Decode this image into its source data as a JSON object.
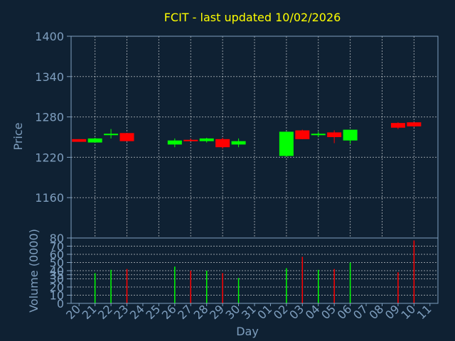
{
  "chart_data": [
    {
      "type": "candlestick",
      "title": "FCIT - last updated 10/02/2026",
      "ylabel": "Price",
      "ylim": [
        1100,
        1400
      ],
      "yticks": [
        1160,
        1220,
        1280,
        1340,
        1400
      ],
      "grid": true,
      "colors": {
        "up": "#00ff00",
        "down": "#ff0000",
        "background": "#0f2133",
        "axis": "#7f9fbf",
        "title": "#ffff00"
      },
      "x": [
        "20",
        "21",
        "22",
        "23",
        "24",
        "25",
        "26",
        "27",
        "28",
        "29",
        "30",
        "31",
        "01",
        "02",
        "03",
        "04",
        "05",
        "06",
        "07",
        "08",
        "09",
        "10",
        "11"
      ],
      "candles": [
        {
          "day": "20",
          "open": 1247,
          "close": 1243,
          "high": 1247,
          "low": 1243
        },
        {
          "day": "21",
          "open": 1242,
          "close": 1248,
          "high": 1249,
          "low": 1242
        },
        {
          "day": "22",
          "open": 1254,
          "close": 1255,
          "high": 1262,
          "low": 1248
        },
        {
          "day": "23",
          "open": 1256,
          "close": 1244,
          "high": 1256,
          "low": 1244
        },
        {
          "day": "26",
          "open": 1239,
          "close": 1245,
          "high": 1248,
          "low": 1235
        },
        {
          "day": "27",
          "open": 1246,
          "close": 1245,
          "high": 1248,
          "low": 1244
        },
        {
          "day": "28",
          "open": 1244,
          "close": 1248,
          "high": 1249,
          "low": 1242
        },
        {
          "day": "29",
          "open": 1247,
          "close": 1235,
          "high": 1249,
          "low": 1233
        },
        {
          "day": "30",
          "open": 1239,
          "close": 1244,
          "high": 1248,
          "low": 1235
        },
        {
          "day": "02",
          "open": 1222,
          "close": 1258,
          "high": 1258,
          "low": 1221
        },
        {
          "day": "03",
          "open": 1260,
          "close": 1247,
          "high": 1261,
          "low": 1247
        },
        {
          "day": "04",
          "open": 1253,
          "close": 1255,
          "high": 1258,
          "low": 1250
        },
        {
          "day": "05",
          "open": 1257,
          "close": 1250,
          "high": 1260,
          "low": 1241
        },
        {
          "day": "06",
          "open": 1245,
          "close": 1261,
          "high": 1261,
          "low": 1240
        },
        {
          "day": "09",
          "open": 1271,
          "close": 1264,
          "high": 1272,
          "low": 1262
        },
        {
          "day": "10",
          "open": 1272,
          "close": 1266,
          "high": 1272,
          "low": 1265
        }
      ]
    },
    {
      "type": "bar",
      "ylabel": "Volume (0000)",
      "xlabel": "Day",
      "ylim": [
        0,
        80
      ],
      "yticks": [
        0,
        10,
        20,
        30,
        35,
        40,
        50,
        60,
        70,
        80
      ],
      "categories": [
        "20",
        "21",
        "22",
        "23",
        "24",
        "25",
        "26",
        "27",
        "28",
        "29",
        "30",
        "31",
        "01",
        "02",
        "03",
        "04",
        "05",
        "06",
        "07",
        "08",
        "09",
        "10",
        "11"
      ],
      "bars": [
        {
          "day": "21",
          "value": 37,
          "direction": "up"
        },
        {
          "day": "22",
          "value": 41,
          "direction": "up"
        },
        {
          "day": "23",
          "value": 42,
          "direction": "down"
        },
        {
          "day": "26",
          "value": 45,
          "direction": "up"
        },
        {
          "day": "27",
          "value": 40,
          "direction": "down"
        },
        {
          "day": "28",
          "value": 40,
          "direction": "up"
        },
        {
          "day": "29",
          "value": 37,
          "direction": "down"
        },
        {
          "day": "30",
          "value": 31,
          "direction": "up"
        },
        {
          "day": "02",
          "value": 43,
          "direction": "up"
        },
        {
          "day": "03",
          "value": 57,
          "direction": "down"
        },
        {
          "day": "04",
          "value": 41,
          "direction": "up"
        },
        {
          "day": "05",
          "value": 42,
          "direction": "down"
        },
        {
          "day": "06",
          "value": 50,
          "direction": "up"
        },
        {
          "day": "09",
          "value": 38,
          "direction": "down"
        },
        {
          "day": "10",
          "value": 77,
          "direction": "down"
        }
      ]
    }
  ]
}
